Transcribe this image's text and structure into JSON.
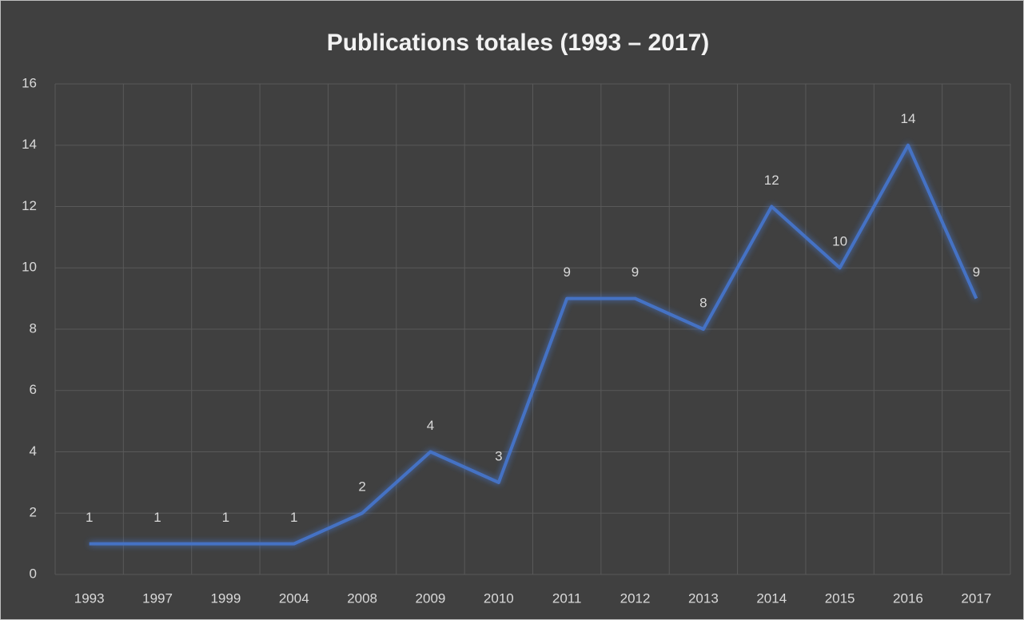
{
  "chart_data": {
    "type": "line",
    "title": "Publications totales (1993 – 2017)",
    "categories": [
      "1993",
      "1997",
      "1999",
      "2004",
      "2008",
      "2009",
      "2010",
      "2011",
      "2012",
      "2013",
      "2014",
      "2015",
      "2016",
      "2017"
    ],
    "values": [
      1,
      1,
      1,
      1,
      2,
      4,
      3,
      9,
      9,
      8,
      12,
      10,
      14,
      9
    ],
    "color": "#4472c4",
    "ylim": [
      0,
      16
    ],
    "yticks": [
      0,
      2,
      4,
      6,
      8,
      10,
      12,
      14,
      16
    ],
    "grid": true
  }
}
